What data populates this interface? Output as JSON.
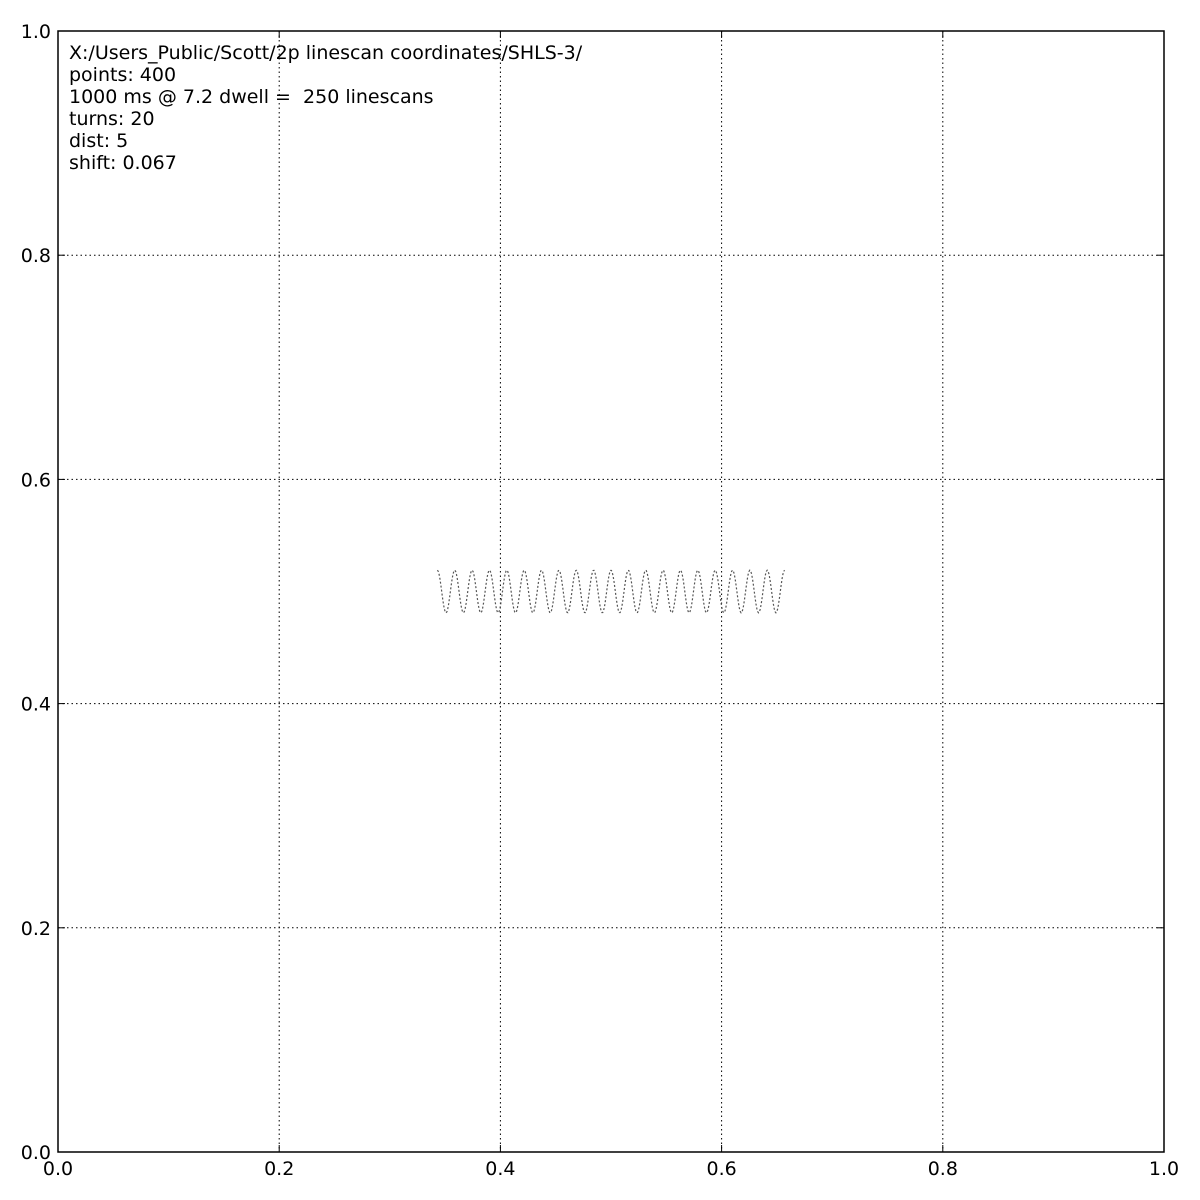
{
  "chart_data": {
    "type": "line",
    "title": "",
    "xlabel": "",
    "ylabel": "",
    "xlim": [
      0.0,
      1.0
    ],
    "ylim": [
      0.0,
      1.0
    ],
    "grid": true,
    "x_ticks": [
      "0.0",
      "0.2",
      "0.4",
      "0.6",
      "0.8",
      "1.0"
    ],
    "y_ticks": [
      "0.0",
      "0.2",
      "0.4",
      "0.6",
      "0.8",
      "1.0"
    ],
    "annotations": [
      "X:/Users_Public/Scott/2p linescan coordinates/SHLS-3/",
      "points: 400",
      "1000 ms @ 7.2 dwell =  250 linescans",
      "turns: 20",
      "dist: 5",
      "shift: 0.067"
    ],
    "series": [
      {
        "color": "#555555",
        "line_style": "dotted",
        "shape": "helical sinusoid",
        "x_range": [
          0.343,
          0.657
        ],
        "y_center": 0.5,
        "y_amplitude": 0.019,
        "points": 400,
        "turns": 20
      }
    ]
  }
}
